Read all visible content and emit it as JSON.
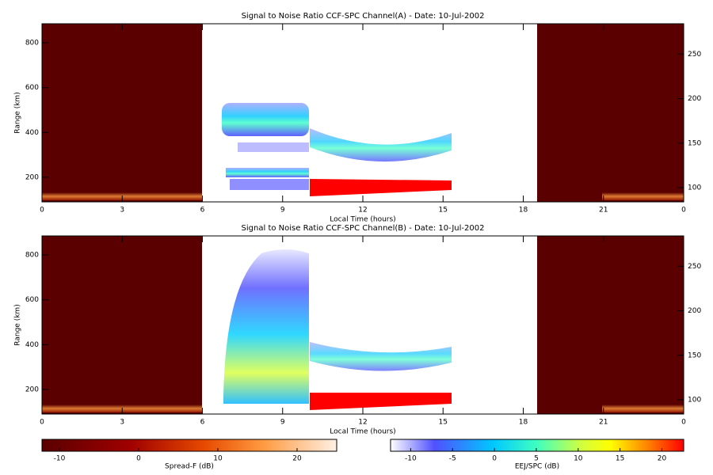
{
  "chart_data": [
    {
      "type": "heatmap",
      "title": "Signal to Noise Ratio CCF-SPC Channel(A) - Date: 10-Jul-2002",
      "xlabel": "Local Time (hours)",
      "ylabel": "Range (km)",
      "xlim": [
        0,
        24
      ],
      "xticks": [
        0,
        3,
        6,
        9,
        12,
        15,
        18,
        21,
        {
          "value": 24,
          "label": "0"
        }
      ],
      "ylim": [
        90,
        885
      ],
      "yticks": [
        200,
        400,
        600,
        800
      ],
      "y2lim": [
        84,
        284
      ],
      "y2ticks": [
        100,
        150,
        200,
        250
      ]
    },
    {
      "type": "heatmap",
      "title": "Signal to Noise Ratio CCF-SPC Channel(B) - Date: 10-Jul-2002",
      "xlabel": "Local Time (hours)",
      "ylabel": "Range (km)",
      "xlim": [
        0,
        24
      ],
      "xticks": [
        0,
        3,
        6,
        9,
        12,
        15,
        18,
        21,
        {
          "value": 24,
          "label": "0"
        }
      ],
      "ylim": [
        90,
        885
      ],
      "yticks": [
        200,
        400,
        600,
        800
      ],
      "y2lim": [
        84,
        284
      ],
      "y2ticks": [
        100,
        150,
        200,
        250
      ]
    }
  ],
  "colorbars": [
    {
      "label": "Spread-F (dB)",
      "lim": [
        -12.2,
        25
      ],
      "ticks": [
        -10,
        0,
        10,
        20
      ]
    },
    {
      "label": "EEJ/SPC (dB)",
      "lim": [
        -12.4,
        22.6
      ],
      "ticks": [
        -10,
        -5,
        0,
        5,
        10,
        15,
        20
      ]
    }
  ]
}
